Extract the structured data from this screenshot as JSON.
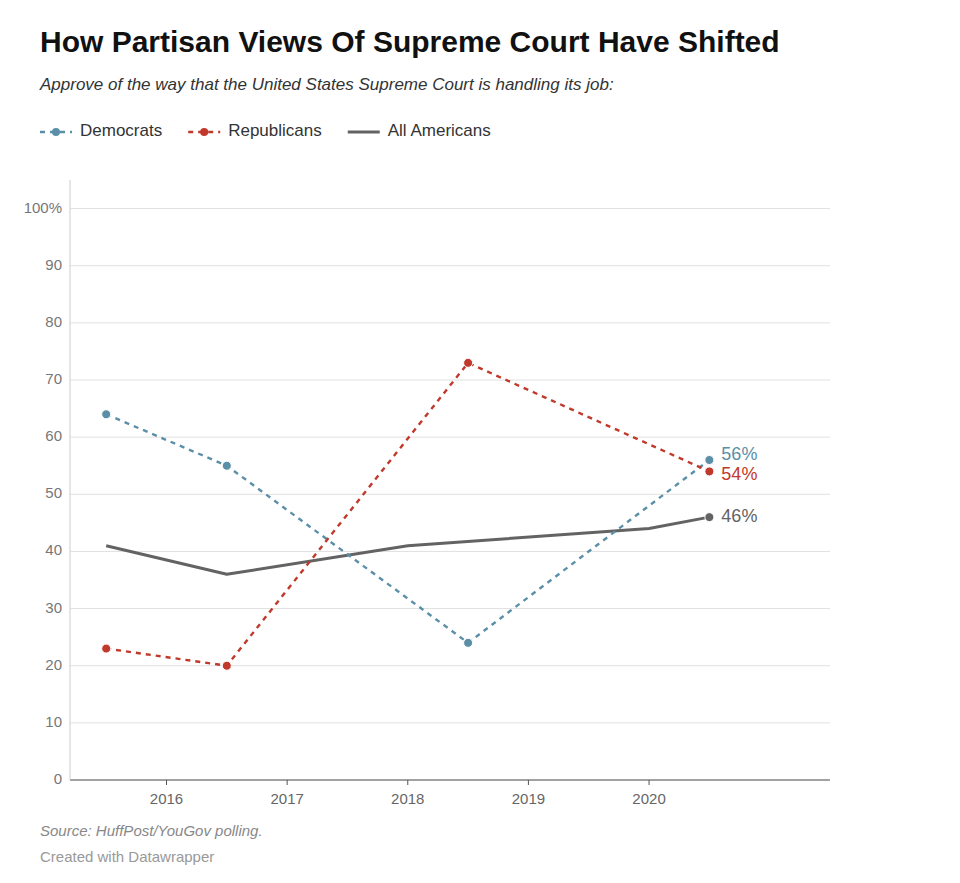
{
  "chart_data": {
    "type": "line",
    "title": "How Partisan Views Of Supreme Court Have Shifted",
    "subtitle": "Approve of the way that the United States Supreme Court is handling its job:",
    "source": "Source: HuffPost/YouGov polling.",
    "credit": "Created with Datawrapper",
    "series": [
      {
        "name": "Democrats",
        "color": "#5b8fa8",
        "line_style": "dashed",
        "marker": "circle",
        "x": [
          2015.5,
          2016.5,
          2018.5,
          2020.5
        ],
        "values": [
          64,
          55,
          24,
          56
        ]
      },
      {
        "name": "Republicans",
        "color": "#c0392b",
        "line_style": "dashed",
        "marker": "circle",
        "x": [
          2015.5,
          2016.5,
          2018.5,
          2020.5
        ],
        "values": [
          23,
          20,
          73,
          54
        ]
      },
      {
        "name": "All Americans",
        "color": "#636363",
        "line_style": "solid",
        "marker": "last",
        "x": [
          2015.5,
          2016.5,
          2018.0,
          2020.0,
          2020.5
        ],
        "values": [
          41,
          36,
          41,
          44,
          46
        ]
      }
    ],
    "annotations": [
      {
        "text": "56%",
        "x": 2020.5,
        "y": 56
      },
      {
        "text": "54%",
        "x": 2020.5,
        "y": 54
      },
      {
        "text": "46%",
        "x": 2020.5,
        "y": 46
      }
    ],
    "xlim": [
      2015.2,
      2021.5
    ],
    "xticks": [
      2016,
      2017,
      2018,
      2019,
      2020
    ],
    "ylim": [
      0,
      105
    ],
    "yticks": [
      0,
      10,
      20,
      30,
      40,
      50,
      60,
      70,
      80,
      90,
      {
        "value": 100,
        "label": "100%"
      }
    ],
    "grid": true,
    "legend": "top-left"
  }
}
